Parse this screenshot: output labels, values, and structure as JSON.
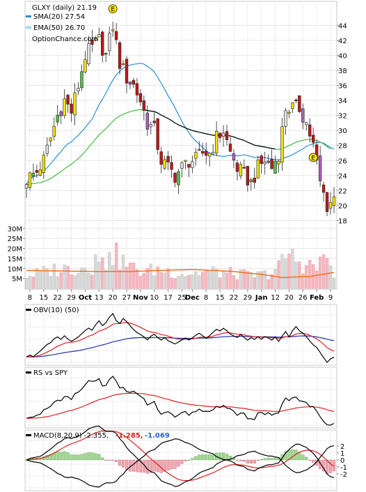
{
  "chart_data": {
    "type": "candlestick",
    "ticker_label": "GLXY (daily)",
    "last_price": "21.19",
    "watermark": "OptionChance.com",
    "earnings_marker": "E",
    "legend": [
      {
        "label": "SMA(20)",
        "value": "27.54",
        "color": "#2a8fd8"
      },
      {
        "label": "EMA(50)",
        "value": "26.70",
        "color": "#8fd9ff"
      }
    ],
    "x_tick_labels": [
      "8",
      "15",
      "22",
      "29",
      "Oct",
      "13",
      "20",
      "27",
      "Nov",
      "10",
      "17",
      "25",
      "Dec",
      "8",
      "15",
      "22",
      "29",
      "Jan",
      "12",
      "20",
      "26",
      "Feb",
      "9"
    ],
    "price_axis": {
      "ylim": [
        16,
        47
      ],
      "ticks": [
        18,
        20,
        22,
        24,
        26,
        28,
        30,
        32,
        34,
        36,
        38,
        40,
        42,
        44
      ]
    },
    "volume_axis": {
      "ylim": [
        0,
        32
      ],
      "ticks": [
        "5M",
        "10M",
        "15M",
        "20M",
        "25M",
        "30M"
      ]
    },
    "price_anchors": [
      [
        0,
        23.5
      ],
      [
        3,
        24.5
      ],
      [
        5,
        26
      ],
      [
        7,
        29
      ],
      [
        9,
        32
      ],
      [
        11,
        34
      ],
      [
        13,
        32.5
      ],
      [
        15,
        36
      ],
      [
        17,
        40
      ],
      [
        19,
        41
      ],
      [
        21,
        42
      ],
      [
        23,
        40
      ],
      [
        25,
        44
      ],
      [
        27,
        39
      ],
      [
        29,
        37
      ],
      [
        31,
        36
      ],
      [
        33,
        34
      ],
      [
        35,
        31
      ],
      [
        37,
        30
      ],
      [
        39,
        26
      ],
      [
        41,
        25
      ],
      [
        43,
        24
      ],
      [
        45,
        25
      ],
      [
        47,
        26
      ],
      [
        49,
        26
      ],
      [
        51,
        27
      ],
      [
        53,
        27
      ],
      [
        55,
        29
      ],
      [
        57,
        30
      ],
      [
        59,
        27
      ],
      [
        61,
        25
      ],
      [
        63,
        24
      ],
      [
        65,
        23
      ],
      [
        67,
        25
      ],
      [
        69,
        26
      ],
      [
        71,
        25
      ],
      [
        73,
        27
      ],
      [
        75,
        33
      ],
      [
        77,
        33
      ],
      [
        79,
        33
      ],
      [
        81,
        31
      ],
      [
        83,
        28
      ],
      [
        85,
        23
      ],
      [
        87,
        20
      ],
      [
        89,
        21
      ]
    ],
    "volume_anchors": [
      [
        0,
        6
      ],
      [
        8,
        9
      ],
      [
        16,
        10
      ],
      [
        23,
        12
      ],
      [
        24,
        18
      ],
      [
        30,
        10
      ],
      [
        34,
        8
      ],
      [
        38,
        9
      ],
      [
        46,
        7
      ],
      [
        54,
        8
      ],
      [
        60,
        7
      ],
      [
        66,
        6
      ],
      [
        70,
        7
      ],
      [
        72,
        9
      ],
      [
        74,
        12
      ],
      [
        76,
        16
      ],
      [
        80,
        12
      ],
      [
        84,
        10
      ],
      [
        86,
        18
      ],
      [
        89,
        8
      ]
    ],
    "volume_sma_anchors": [
      [
        0,
        9
      ],
      [
        20,
        8.5
      ],
      [
        30,
        8.5
      ],
      [
        48,
        9.5
      ],
      [
        60,
        8.5
      ],
      [
        68,
        7
      ],
      [
        74,
        5.5
      ],
      [
        82,
        6
      ],
      [
        89,
        8
      ]
    ],
    "earnings_points": [
      [
        25,
        46.2
      ],
      [
        83,
        26.4
      ]
    ],
    "obv_panel": {
      "label": "OBV(10) (50)"
    },
    "rs_panel": {
      "label": "RS vs SPY"
    },
    "macd_panel": {
      "label": "MACD(8,20,9)",
      "macd_value": "-2.355,",
      "signal_value": "-1.285,",
      "hist_value": "-1.069",
      "ticks": [
        "2",
        "1",
        "0",
        "-1",
        "-2"
      ],
      "ylim": [
        -3,
        3
      ]
    }
  }
}
